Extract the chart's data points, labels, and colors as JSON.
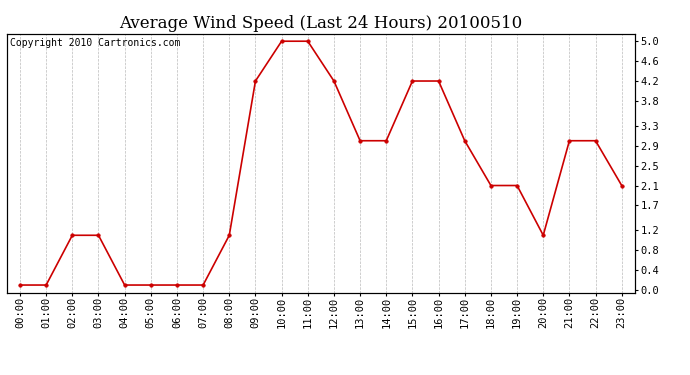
{
  "title": "Average Wind Speed (Last 24 Hours) 20100510",
  "copyright_text": "Copyright 2010 Cartronics.com",
  "hours": [
    "00:00",
    "01:00",
    "02:00",
    "03:00",
    "04:00",
    "05:00",
    "06:00",
    "07:00",
    "08:00",
    "09:00",
    "10:00",
    "11:00",
    "12:00",
    "13:00",
    "14:00",
    "15:00",
    "16:00",
    "17:00",
    "18:00",
    "19:00",
    "20:00",
    "21:00",
    "22:00",
    "23:00"
  ],
  "values": [
    0.1,
    0.1,
    1.1,
    1.1,
    0.1,
    0.1,
    0.1,
    0.1,
    1.1,
    4.2,
    5.0,
    5.0,
    4.2,
    3.0,
    3.0,
    4.2,
    4.2,
    3.0,
    2.1,
    2.1,
    1.1,
    3.0,
    3.0,
    2.1
  ],
  "line_color": "#cc0000",
  "marker_color": "#cc0000",
  "bg_color": "#ffffff",
  "grid_color": "#bbbbbb",
  "yticks": [
    0.0,
    0.4,
    0.8,
    1.2,
    1.7,
    2.1,
    2.5,
    2.9,
    3.3,
    3.8,
    4.2,
    4.6,
    5.0
  ],
  "ylim": [
    0.0,
    5.0
  ],
  "title_fontsize": 12,
  "copyright_fontsize": 7,
  "tick_fontsize": 7.5
}
